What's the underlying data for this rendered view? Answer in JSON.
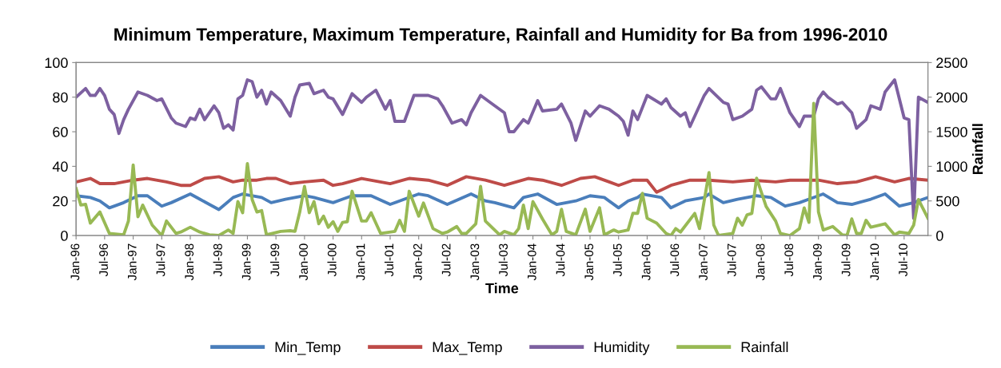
{
  "chart_data": {
    "type": "line",
    "title": "Minimum Temperature, Maximum Temperature, Rainfall and Humidity for Ba from 1996-2010",
    "xlabel": "Time",
    "y2label": "Rainfall",
    "xlim": [
      "1996-01",
      "2010-12"
    ],
    "xticks": [
      {
        "value": "1996-01",
        "label": "Jan-96"
      },
      {
        "value": "1996-07",
        "label": "Jul-96"
      },
      {
        "value": "1997-01",
        "label": "Jan-97"
      },
      {
        "value": "1997-07",
        "label": "Jul-97"
      },
      {
        "value": "1998-01",
        "label": "Jan-98"
      },
      {
        "value": "1998-07",
        "label": "Jul-98"
      },
      {
        "value": "1999-01",
        "label": "Jan-99"
      },
      {
        "value": "1999-07",
        "label": "Jul-99"
      },
      {
        "value": "2000-01",
        "label": "Jan-00"
      },
      {
        "value": "2000-07",
        "label": "Jul-00"
      },
      {
        "value": "2001-01",
        "label": "Jan-01"
      },
      {
        "value": "2001-07",
        "label": "Jul-01"
      },
      {
        "value": "2002-01",
        "label": "Jan-02"
      },
      {
        "value": "2002-07",
        "label": "Jul-02"
      },
      {
        "value": "2003-01",
        "label": "Jan-03"
      },
      {
        "value": "2003-07",
        "label": "Jul-03"
      },
      {
        "value": "2004-01",
        "label": "Jan-04"
      },
      {
        "value": "2004-07",
        "label": "Jul-04"
      },
      {
        "value": "2005-01",
        "label": "Jan-05"
      },
      {
        "value": "2005-07",
        "label": "Jul-05"
      },
      {
        "value": "2006-01",
        "label": "Jan-06"
      },
      {
        "value": "2006-07",
        "label": "Jul-06"
      },
      {
        "value": "2007-01",
        "label": "Jan-07"
      },
      {
        "value": "2007-07",
        "label": "Jul-07"
      },
      {
        "value": "2008-01",
        "label": "Jan-08"
      },
      {
        "value": "2008-07",
        "label": "Jul-08"
      },
      {
        "value": "2009-01",
        "label": "Jan-09"
      },
      {
        "value": "2009-07",
        "label": "Jul-09"
      },
      {
        "value": "2010-01",
        "label": "Jan-10"
      },
      {
        "value": "2010-07",
        "label": "Jul-10"
      }
    ],
    "ylim": [
      0,
      100
    ],
    "yticks": [
      0,
      20,
      40,
      60,
      80,
      100
    ],
    "y2lim": [
      0,
      2500
    ],
    "y2ticks": [
      0,
      500,
      1000,
      1500,
      2000,
      2500
    ],
    "grid": false,
    "legend": "bottom",
    "series": [
      {
        "name": "Min_Temp",
        "color": "#4a7ebb",
        "x": [
          "1996-01",
          "1996-04",
          "1996-06",
          "1996-08",
          "1996-11",
          "1997-02",
          "1997-04",
          "1997-07",
          "1997-09",
          "1998-01",
          "1998-03",
          "1998-07",
          "1998-10",
          "1998-12",
          "1999-04",
          "1999-06",
          "1999-09",
          "2000-01",
          "2000-03",
          "2000-07",
          "2000-09",
          "2000-11",
          "2001-03",
          "2001-07",
          "2001-10",
          "2002-01",
          "2002-03",
          "2002-07",
          "2002-12",
          "2003-03",
          "2003-05",
          "2003-09",
          "2003-11",
          "2004-02",
          "2004-06",
          "2004-10",
          "2005-01",
          "2005-04",
          "2005-07",
          "2005-09",
          "2005-11",
          "2005-12",
          "2006-04",
          "2006-06",
          "2006-09",
          "2007-01",
          "2007-02",
          "2007-05",
          "2007-08",
          "2007-12",
          "2008-03",
          "2008-06",
          "2008-09",
          "2009-02",
          "2009-05",
          "2009-08",
          "2009-12",
          "2010-03",
          "2010-06",
          "2010-09",
          "2010-12"
        ],
        "values": [
          23,
          22,
          20,
          16,
          19,
          23,
          23,
          17,
          19,
          24,
          21,
          15,
          22,
          24,
          22,
          19,
          21,
          23,
          22,
          19,
          21,
          23,
          23,
          18,
          21,
          24,
          23,
          18,
          24,
          20,
          19,
          16,
          22,
          24,
          18,
          20,
          23,
          22,
          16,
          20,
          22,
          24,
          22,
          16,
          20,
          22,
          24,
          19,
          21,
          23,
          22,
          17,
          19,
          24,
          19,
          18,
          21,
          24,
          17,
          19,
          22
        ]
      },
      {
        "name": "Max_Temp",
        "color": "#be4b48",
        "x": [
          "1996-01",
          "1996-04",
          "1996-06",
          "1996-09",
          "1996-11",
          "1997-01",
          "1997-04",
          "1997-08",
          "1997-11",
          "1998-01",
          "1998-04",
          "1998-07",
          "1998-10",
          "1998-12",
          "1999-03",
          "1999-05",
          "1999-07",
          "1999-10",
          "2000-01",
          "2000-05",
          "2000-07",
          "2000-09",
          "2001-01",
          "2001-07",
          "2001-11",
          "2002-03",
          "2002-07",
          "2002-11",
          "2003-03",
          "2003-07",
          "2003-12",
          "2004-03",
          "2004-07",
          "2004-11",
          "2005-02",
          "2005-07",
          "2005-10",
          "2006-01",
          "2006-03",
          "2006-06",
          "2006-10",
          "2007-02",
          "2007-07",
          "2007-11",
          "2008-04",
          "2008-07",
          "2009-01",
          "2009-05",
          "2009-09",
          "2010-01",
          "2010-05",
          "2010-08",
          "2010-12"
        ],
        "values": [
          31,
          33,
          30,
          30,
          31,
          32,
          33,
          31,
          29,
          29,
          33,
          34,
          31,
          32,
          32,
          33,
          33,
          30,
          31,
          32,
          29,
          30,
          33,
          30,
          33,
          32,
          29,
          34,
          32,
          29,
          33,
          32,
          29,
          33,
          34,
          29,
          32,
          32,
          25,
          29,
          32,
          32,
          31,
          32,
          31,
          32,
          32,
          30,
          31,
          34,
          31,
          33,
          32
        ]
      },
      {
        "name": "Humidity",
        "color": "#7d60a0",
        "x": [
          "1996-01",
          "1996-03",
          "1996-04",
          "1996-05",
          "1996-06",
          "1996-07",
          "1996-08",
          "1996-09",
          "1996-10",
          "1996-11",
          "1996-12",
          "1997-02",
          "1997-04",
          "1997-06",
          "1997-07",
          "1997-09",
          "1997-10",
          "1997-12",
          "1998-01",
          "1998-02",
          "1998-03",
          "1998-04",
          "1998-06",
          "1998-07",
          "1998-08",
          "1998-09",
          "1998-10",
          "1998-11",
          "1998-12",
          "1999-01",
          "1999-02",
          "1999-03",
          "1999-04",
          "1999-05",
          "1999-06",
          "1999-08",
          "1999-10",
          "1999-11",
          "1999-12",
          "2000-02",
          "2000-03",
          "2000-05",
          "2000-06",
          "2000-07",
          "2000-09",
          "2000-11",
          "2001-01",
          "2001-02",
          "2001-04",
          "2001-06",
          "2001-07",
          "2001-08",
          "2001-10",
          "2001-12",
          "2002-03",
          "2002-05",
          "2002-06",
          "2002-08",
          "2002-10",
          "2002-11",
          "2002-12",
          "2003-02",
          "2003-04",
          "2003-07",
          "2003-08",
          "2003-09",
          "2003-11",
          "2003-12",
          "2004-02",
          "2004-03",
          "2004-06",
          "2004-07",
          "2004-09",
          "2004-10",
          "2004-12",
          "2005-01",
          "2005-03",
          "2005-05",
          "2005-07",
          "2005-08",
          "2005-09",
          "2005-10",
          "2005-11",
          "2006-01",
          "2006-04",
          "2006-05",
          "2006-06",
          "2006-08",
          "2006-09",
          "2006-10",
          "2006-11",
          "2007-01",
          "2007-02",
          "2007-05",
          "2007-06",
          "2007-07",
          "2007-09",
          "2007-11",
          "2007-12",
          "2008-01",
          "2008-03",
          "2008-04",
          "2008-05",
          "2008-07",
          "2008-09",
          "2008-10",
          "2008-12",
          "2009-01",
          "2009-02",
          "2009-03",
          "2009-04",
          "2009-05",
          "2009-06",
          "2009-08",
          "2009-09",
          "2009-11",
          "2009-12",
          "2010-02",
          "2010-03",
          "2010-05",
          "2010-07",
          "2010-08",
          "2010-09",
          "2010-10",
          "2010-12"
        ],
        "values": [
          80,
          85,
          81,
          81,
          85,
          81,
          73,
          70,
          59,
          67,
          73,
          83,
          81,
          78,
          79,
          68,
          65,
          63,
          68,
          67,
          73,
          67,
          75,
          71,
          62,
          64,
          61,
          79,
          81,
          90,
          89,
          80,
          84,
          76,
          83,
          78,
          69,
          80,
          87,
          88,
          82,
          84,
          80,
          79,
          70,
          82,
          77,
          80,
          84,
          73,
          78,
          66,
          66,
          81,
          81,
          79,
          75,
          65,
          67,
          64,
          71,
          81,
          77,
          71,
          60,
          60,
          67,
          65,
          78,
          72,
          73,
          76,
          65,
          55,
          72,
          69,
          75,
          73,
          69,
          66,
          58,
          72,
          67,
          81,
          76,
          79,
          74,
          69,
          71,
          63,
          69,
          81,
          85,
          77,
          76,
          67,
          69,
          73,
          84,
          86,
          79,
          79,
          85,
          71,
          63,
          69,
          69,
          79,
          83,
          80,
          78,
          76,
          77,
          71,
          62,
          67,
          75,
          73,
          83,
          90,
          68,
          67,
          10,
          80,
          77
        ]
      },
      {
        "name": "Rainfall",
        "color": "#98b954",
        "axis": "y2",
        "x": [
          "1996-01",
          "1996-02",
          "1996-03",
          "1996-04",
          "1996-06",
          "1996-08",
          "1996-11",
          "1996-12",
          "1997-01",
          "1997-02",
          "1997-03",
          "1997-05",
          "1997-07",
          "1997-08",
          "1997-10",
          "1997-11",
          "1998-01",
          "1998-03",
          "1998-05",
          "1998-07",
          "1998-09",
          "1998-10",
          "1998-11",
          "1998-12",
          "1999-01",
          "1999-02",
          "1999-03",
          "1999-04",
          "1999-05",
          "1999-08",
          "1999-10",
          "1999-11",
          "1999-12",
          "2000-01",
          "2000-02",
          "2000-03",
          "2000-04",
          "2000-05",
          "2000-06",
          "2000-07",
          "2000-08",
          "2000-09",
          "2000-10",
          "2000-11",
          "2001-01",
          "2001-02",
          "2001-03",
          "2001-05",
          "2001-08",
          "2001-09",
          "2001-10",
          "2001-11",
          "2002-01",
          "2002-02",
          "2002-04",
          "2002-06",
          "2002-07",
          "2002-09",
          "2002-10",
          "2002-11",
          "2003-01",
          "2003-02",
          "2003-03",
          "2003-06",
          "2003-07",
          "2003-09",
          "2003-10",
          "2003-11",
          "2003-12",
          "2004-01",
          "2004-03",
          "2004-05",
          "2004-06",
          "2004-07",
          "2004-08",
          "2004-10",
          "2004-12",
          "2005-01",
          "2005-03",
          "2005-04",
          "2005-06",
          "2005-07",
          "2005-09",
          "2005-10",
          "2005-11",
          "2005-12",
          "2006-01",
          "2006-03",
          "2006-05",
          "2006-06",
          "2006-07",
          "2006-08",
          "2006-11",
          "2006-12",
          "2007-02",
          "2007-03",
          "2007-04",
          "2007-07",
          "2007-08",
          "2007-09",
          "2007-10",
          "2007-11",
          "2007-12",
          "2008-02",
          "2008-04",
          "2008-05",
          "2008-07",
          "2008-09",
          "2008-10",
          "2008-11",
          "2008-12",
          "2009-01",
          "2009-02",
          "2009-04",
          "2009-06",
          "2009-07",
          "2009-08",
          "2009-09",
          "2009-10",
          "2009-11",
          "2009-12",
          "2010-03",
          "2010-05",
          "2010-06",
          "2010-08",
          "2010-09",
          "2010-10",
          "2010-12"
        ],
        "values": [
          680,
          440,
          450,
          180,
          340,
          30,
          10,
          210,
          1020,
          270,
          440,
          150,
          0,
          210,
          30,
          50,
          120,
          50,
          10,
          0,
          80,
          30,
          490,
          330,
          1040,
          520,
          340,
          360,
          10,
          60,
          70,
          60,
          340,
          710,
          330,
          490,
          170,
          280,
          120,
          200,
          60,
          190,
          200,
          640,
          210,
          210,
          330,
          30,
          60,
          220,
          60,
          640,
          280,
          470,
          100,
          30,
          50,
          130,
          30,
          30,
          170,
          710,
          210,
          10,
          60,
          10,
          100,
          440,
          100,
          490,
          240,
          10,
          60,
          380,
          60,
          10,
          380,
          60,
          400,
          10,
          80,
          50,
          80,
          320,
          320,
          610,
          250,
          180,
          30,
          0,
          100,
          50,
          320,
          100,
          910,
          150,
          0,
          30,
          250,
          150,
          300,
          320,
          830,
          420,
          210,
          30,
          0,
          100,
          400,
          190,
          1910,
          340,
          80,
          130,
          10,
          0,
          240,
          30,
          30,
          220,
          120,
          170,
          10,
          50,
          30,
          150,
          520,
          250
        ]
      }
    ]
  }
}
